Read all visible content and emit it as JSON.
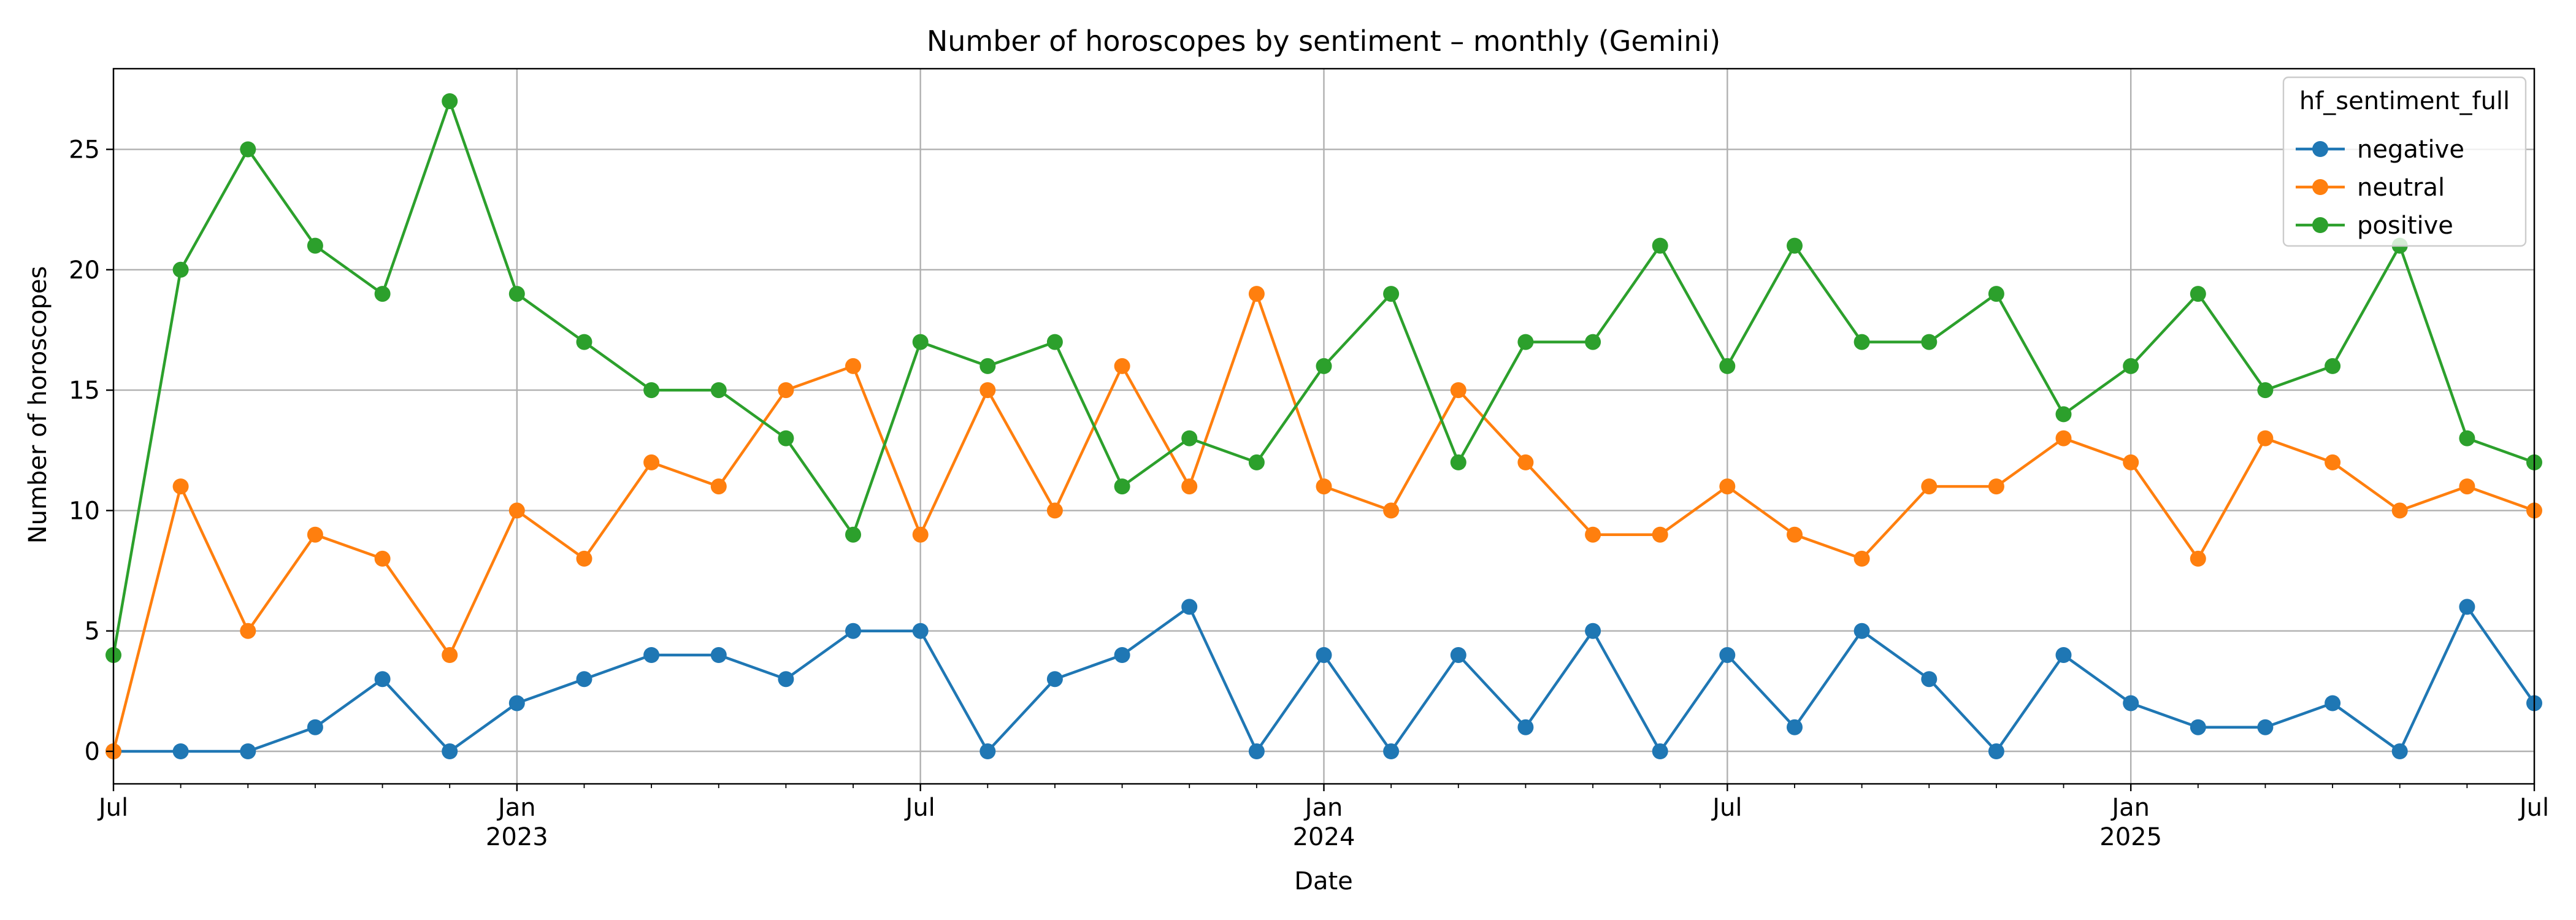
{
  "chart_data": {
    "type": "line",
    "title": "Number of horoscopes by sentiment – monthly (Gemini)",
    "xlabel": "Date",
    "ylabel": "Number of horoscopes",
    "x": [
      "2022-07",
      "2022-08",
      "2022-09",
      "2022-10",
      "2022-11",
      "2022-12",
      "2023-01",
      "2023-02",
      "2023-03",
      "2023-04",
      "2023-05",
      "2023-06",
      "2023-07",
      "2023-08",
      "2023-09",
      "2023-10",
      "2023-11",
      "2023-12",
      "2024-01",
      "2024-02",
      "2024-03",
      "2024-04",
      "2024-05",
      "2024-06",
      "2024-07",
      "2024-08",
      "2024-09",
      "2024-10",
      "2024-11",
      "2024-12",
      "2025-01",
      "2025-02",
      "2025-03",
      "2025-04",
      "2025-05",
      "2025-06",
      "2025-07"
    ],
    "xlim": [
      "2022-07",
      "2025-07"
    ],
    "ylim": [
      -1.35,
      28.35
    ],
    "yticks": [
      0,
      5,
      10,
      15,
      20,
      25
    ],
    "xticks": [
      {
        "date": "2022-07",
        "label": "Jul",
        "year": ""
      },
      {
        "date": "2023-01",
        "label": "Jan",
        "year": "2023"
      },
      {
        "date": "2023-07",
        "label": "Jul",
        "year": ""
      },
      {
        "date": "2024-01",
        "label": "Jan",
        "year": "2024"
      },
      {
        "date": "2024-07",
        "label": "Jul",
        "year": ""
      },
      {
        "date": "2025-01",
        "label": "Jan",
        "year": "2025"
      },
      {
        "date": "2025-07",
        "label": "Jul",
        "year": ""
      }
    ],
    "grid": true,
    "legend": {
      "title": "hf_sentiment_full",
      "placement": "top-right"
    },
    "series": [
      {
        "name": "negative",
        "color": "#1f77b4",
        "values": [
          0,
          0,
          0,
          1,
          3,
          0,
          2,
          3,
          4,
          4,
          3,
          5,
          5,
          0,
          3,
          4,
          6,
          0,
          4,
          0,
          4,
          1,
          5,
          0,
          4,
          1,
          5,
          3,
          0,
          4,
          2,
          1,
          1,
          2,
          0,
          6,
          2
        ]
      },
      {
        "name": "neutral",
        "color": "#ff7f0e",
        "values": [
          0,
          11,
          5,
          9,
          8,
          4,
          10,
          8,
          12,
          11,
          15,
          16,
          9,
          15,
          10,
          16,
          11,
          19,
          11,
          10,
          15,
          12,
          9,
          9,
          11,
          9,
          8,
          11,
          11,
          13,
          12,
          8,
          13,
          12,
          10,
          11,
          10
        ]
      },
      {
        "name": "positive",
        "color": "#2ca02c",
        "values": [
          4,
          20,
          25,
          21,
          19,
          27,
          19,
          17,
          15,
          15,
          13,
          9,
          17,
          16,
          17,
          11,
          13,
          12,
          16,
          19,
          12,
          17,
          17,
          21,
          16,
          21,
          17,
          17,
          19,
          14,
          16,
          19,
          15,
          16,
          21,
          13,
          12
        ]
      }
    ]
  }
}
